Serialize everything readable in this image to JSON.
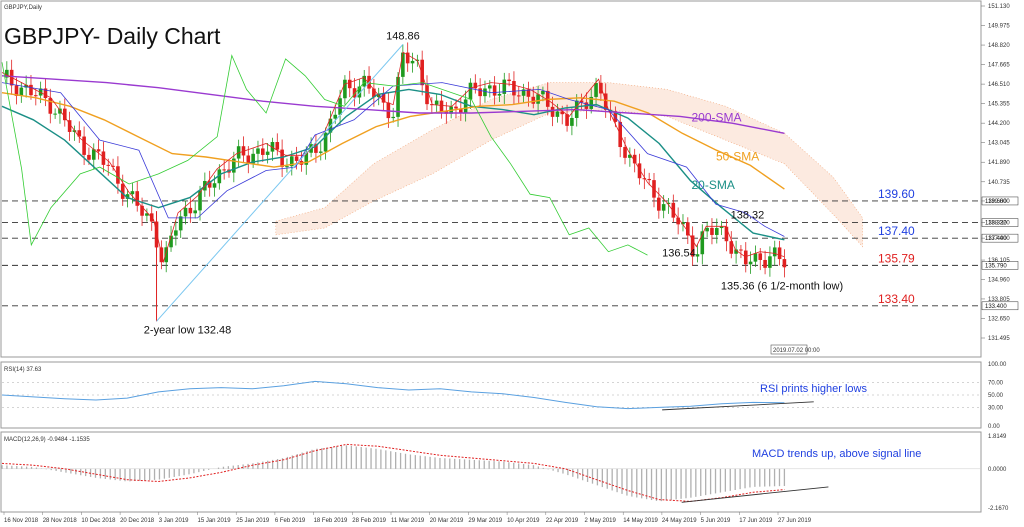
{
  "header": {
    "symbol_caption": "GBPJPY,Daily",
    "title": "GBPJPY- Daily Chart"
  },
  "colors": {
    "candle_up": "#1f9a1f",
    "candle_down": "#e02020",
    "sma20": "#1b8f86",
    "sma50": "#f0a020",
    "sma200": "#9a3ad0",
    "tenkan": "#e02020",
    "kijun": "#3a3ad8",
    "chikou": "#33cc33",
    "cloud": "#f0a070",
    "trendline": "#7ac7f0",
    "rsi": "#5aa0e0",
    "macd_signal": "#e02020",
    "macd_hist": "#b0b0b0",
    "annotation_blue": "#2040e0"
  },
  "chart_data": [
    {
      "type": "line",
      "title": "GBPJPY- Daily Chart",
      "ylim": [
        131.495,
        151.13
      ],
      "x_labels": [
        "16 Nov 2018",
        "28 Nov 2018",
        "10 Dec 2018",
        "20 Dec 2018",
        "3 Jan 2019",
        "15 Jan 2019",
        "25 Jan 2019",
        "6 Feb 2019",
        "18 Feb 2019",
        "28 Feb 2019",
        "11 Mar 2019",
        "20 Mar 2019",
        "29 Mar 2019",
        "10 Apr 2019",
        "22 Apr 2019",
        "2 May 2019",
        "14 May 2019",
        "24 May 2019",
        "5 Jun 2019",
        "17 Jun 2019",
        "27 Jun 2019"
      ],
      "y_ticks": [
        "151.130",
        "149.975",
        "148.820",
        "147.665",
        "146.510",
        "145.355",
        "144.200",
        "143.045",
        "141.890",
        "140.735",
        "139.600",
        "138.320",
        "137.400",
        "136.105",
        "134.960",
        "133.805",
        "132.650",
        "131.495"
      ],
      "horizontal_levels": [
        {
          "value": 139.6,
          "label": "139.60",
          "color": "#2040e0"
        },
        {
          "value": 138.32,
          "label": "",
          "color": "#444444"
        },
        {
          "value": 137.4,
          "label": "137.40",
          "color": "#2040e0"
        },
        {
          "value": 135.79,
          "label": "135.79",
          "color": "#e02020"
        },
        {
          "value": 133.4,
          "label": "133.40",
          "color": "#e02020"
        }
      ],
      "axis_tags": [
        "139.600",
        "138.320",
        "137.400",
        "135.790",
        "133.400"
      ],
      "annotations": [
        {
          "text": "148.86"
        },
        {
          "text": "138.32"
        },
        {
          "text": "136.54"
        },
        {
          "text": "135.36 (6 1/2-month low)"
        },
        {
          "text": "2-year low 132.48"
        },
        {
          "text": "200-SMA",
          "color": "#9a3ad0"
        },
        {
          "text": "50-SMA",
          "color": "#f0a020"
        },
        {
          "text": "20-SMA",
          "color": "#1b8f86"
        }
      ],
      "series": [
        {
          "name": "20-SMA",
          "values": [
            145.2,
            144.4,
            143.2,
            141.5,
            139.8,
            139.2,
            139.8,
            141.2,
            141.9,
            142.2,
            142.8,
            144.6,
            145.9,
            146.2,
            145.9,
            145.2,
            145.0,
            144.7,
            145.1,
            145.3,
            144.5,
            143.0,
            140.8,
            139.2,
            137.7,
            137.3
          ]
        },
        {
          "name": "50-SMA",
          "values": [
            146.0,
            145.7,
            145.2,
            144.4,
            143.4,
            142.4,
            142.2,
            141.9,
            141.6,
            141.9,
            143.0,
            144.0,
            144.6,
            144.9,
            145.2,
            145.3,
            145.6,
            145.7,
            145.5,
            144.8,
            143.6,
            142.6,
            141.7,
            140.3
          ]
        },
        {
          "name": "200-SMA",
          "values": [
            147.0,
            146.8,
            146.6,
            146.3,
            145.9,
            145.5,
            145.2,
            145.0,
            144.8,
            144.8,
            144.9,
            145.0,
            144.8,
            144.6,
            144.2,
            143.6
          ]
        }
      ]
    },
    {
      "type": "line",
      "title": "RSI(14) 37.63",
      "ylim": [
        0,
        100
      ],
      "y_ticks": [
        "100.00",
        "70.00",
        "50.00",
        "30.00",
        "0.00"
      ],
      "annotations": [
        {
          "text": "RSI prints higher lows",
          "color": "#2040e0"
        }
      ],
      "series": [
        {
          "name": "RSI(14)",
          "values": [
            50,
            47,
            44,
            42,
            45,
            55,
            60,
            62,
            60,
            65,
            72,
            68,
            62,
            58,
            60,
            55,
            52,
            46,
            38,
            31,
            28,
            30,
            32,
            36,
            38,
            37.63
          ]
        }
      ]
    },
    {
      "type": "bar",
      "title": "MACD(12,26,9) -0.9484 -1.1535",
      "ylim": [
        -2.167,
        1.8149
      ],
      "y_ticks": [
        "1.8149",
        "0.0000",
        "-2.1670"
      ],
      "annotations": [
        {
          "text": "MACD trends up, above signal line",
          "color": "#2040e0"
        }
      ],
      "series": [
        {
          "name": "MACD",
          "values": [
            0.2,
            0.1,
            -0.2,
            -0.5,
            -0.7,
            -0.6,
            -0.3,
            0.1,
            0.3,
            0.6,
            1.1,
            1.3,
            1.1,
            0.8,
            0.6,
            0.5,
            0.4,
            0.2,
            -0.3,
            -0.9,
            -1.5,
            -1.8,
            -1.6,
            -1.3,
            -1.0,
            -0.95
          ]
        },
        {
          "name": "Signal",
          "values": [
            0.3,
            0.2,
            0.0,
            -0.3,
            -0.6,
            -0.7,
            -0.5,
            -0.2,
            0.2,
            0.5,
            1.0,
            1.35,
            1.25,
            1.0,
            0.75,
            0.6,
            0.45,
            0.3,
            0.0,
            -0.6,
            -1.2,
            -1.7,
            -1.8,
            -1.6,
            -1.3,
            -1.15
          ]
        }
      ]
    }
  ],
  "rsi_caption": "RSI(14) 37.63",
  "macd_caption": "MACD(12,26,9) -0.9484 -1.1535",
  "date_tag": "2019.07.02 00:00"
}
